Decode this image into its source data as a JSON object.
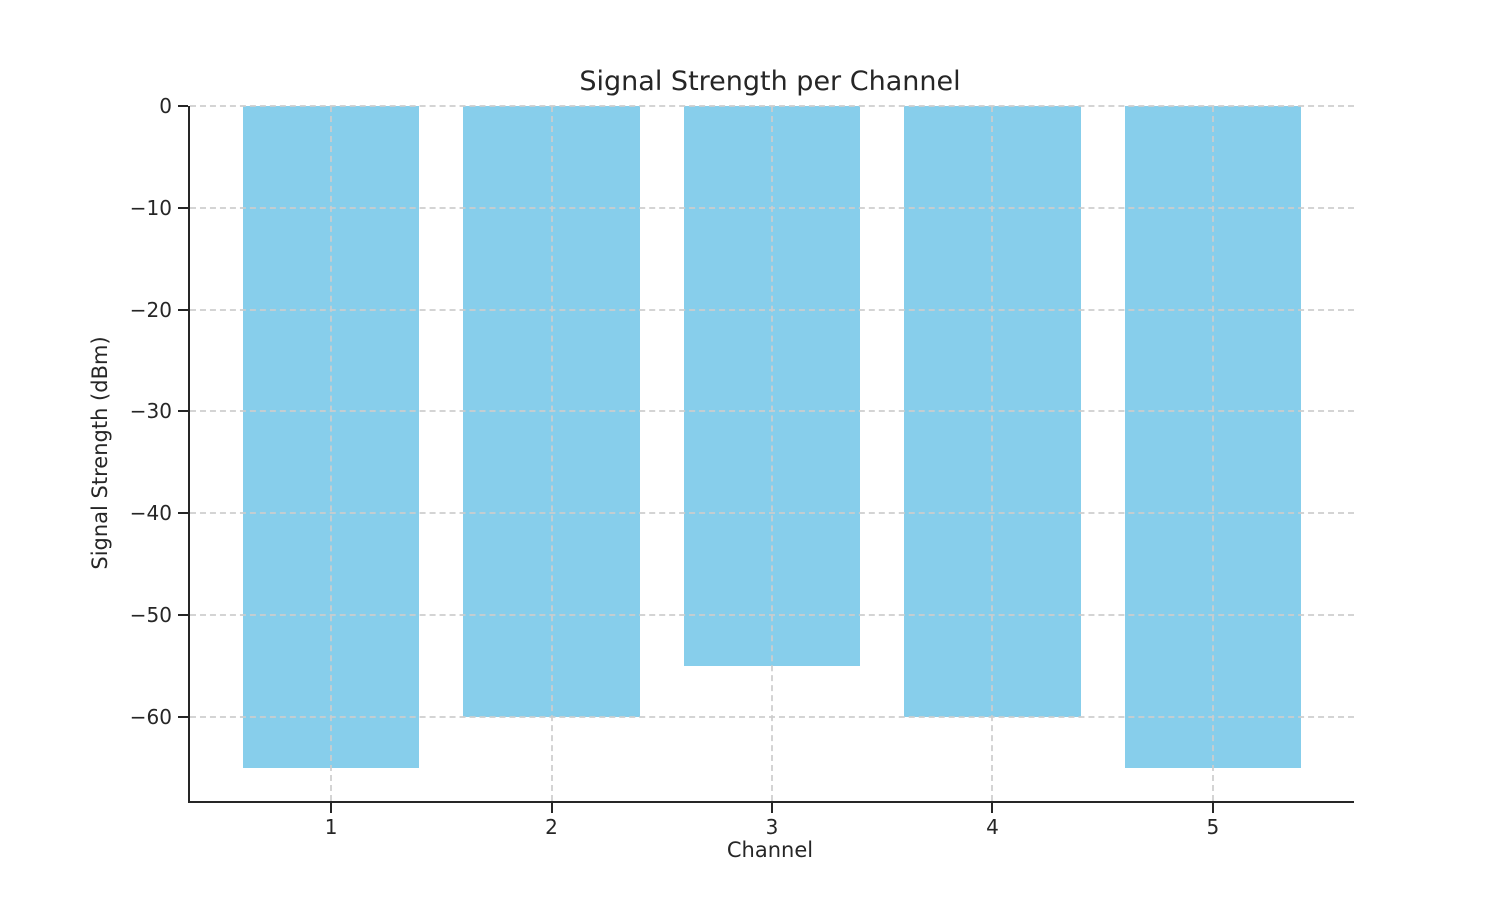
{
  "figure": {
    "background": "#ffffff"
  },
  "chart_data": {
    "type": "bar",
    "title": "Signal Strength per Channel",
    "xlabel": "Channel",
    "ylabel": "Signal Strength (dBm)",
    "categories": [
      "1",
      "2",
      "3",
      "4",
      "5"
    ],
    "values": [
      -65,
      -60,
      -55,
      -60,
      -65
    ],
    "bar_color": "#87CEEB",
    "axis_color": "#262626",
    "grid_color": "#cdcdcd",
    "grid": true,
    "grid_style": "dashed",
    "legend_position": "none",
    "ylim": [
      -68.25,
      0
    ],
    "xlim": [
      0.36,
      5.64
    ],
    "bar_width_units": 0.8,
    "yticks": [
      0,
      -10,
      -20,
      -30,
      -40,
      -50,
      -60
    ],
    "ytick_labels": [
      "0",
      "−10",
      "−20",
      "−30",
      "−40",
      "−50",
      "−60"
    ]
  }
}
